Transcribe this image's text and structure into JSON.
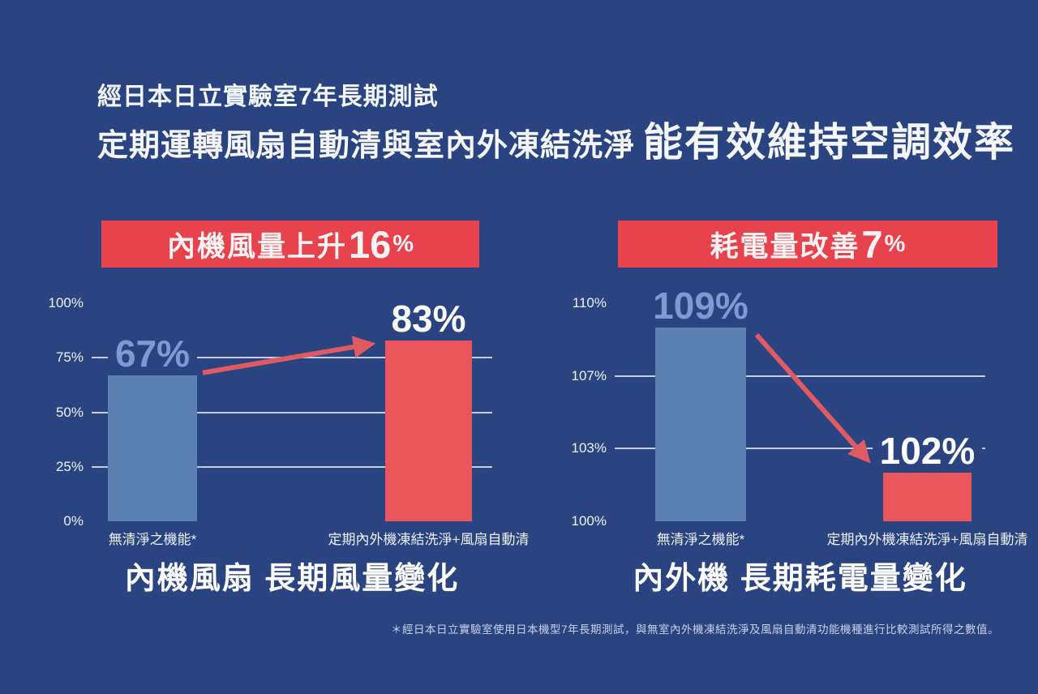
{
  "colors": {
    "background": "#2a4481",
    "banner_red": "#e8424d",
    "bar_blue": "#5d80b2",
    "bar_red": "#ea565b",
    "arrow_red": "#e05a62",
    "value_label_blue": "#7e9bd1",
    "gridline": "#ebf0fa"
  },
  "header": {
    "line1": "經日本日立實驗室7年長期測試",
    "line2_regular": "定期運轉風扇自動清與室內外凍結洗淨",
    "line2_emphasis": "能有效維持空調效率"
  },
  "footnote": "＊經日本日立實驗室使用日本機型7年長期測試，與無室內外機凍結洗淨及風扇自動清功能機種進行比較測試所得之數值。",
  "chart_data": [
    {
      "type": "bar",
      "title": "內機風量上升16%",
      "banner": {
        "text": "內機風量上升",
        "number": "16",
        "unit": "%"
      },
      "categories": [
        "無清淨之機能*",
        "定期內外機凍結洗淨+風扇自動清"
      ],
      "values": [
        67,
        83
      ],
      "value_labels": [
        "67%",
        "83%"
      ],
      "value_label_colors": [
        "#7e9bd1",
        "#ffffff"
      ],
      "bar_colors": [
        "#5d80b2",
        "#ea565b"
      ],
      "yticks": [
        0,
        25,
        50,
        75,
        100
      ],
      "ytick_labels": [
        "0%",
        "25%",
        "50%",
        "75%",
        "100%"
      ],
      "grid_ticks": [
        25,
        50,
        75
      ],
      "ylim": [
        0,
        100
      ],
      "grid": true,
      "legend": "none",
      "trend": "up",
      "caption": "內機風扇 長期風量變化"
    },
    {
      "type": "bar",
      "title": "耗電量改善7%",
      "banner": {
        "text": "耗電量改善",
        "number": "7",
        "unit": "%"
      },
      "categories": [
        "無清淨之機能*",
        "定期內外機凍結洗淨+風扇自動清"
      ],
      "values": [
        109,
        102
      ],
      "value_labels": [
        "109%",
        "102%"
      ],
      "value_label_colors": [
        "#7e9bd1",
        "#ffffff"
      ],
      "bar_colors": [
        "#5d80b2",
        "#ea565b"
      ],
      "yticks": [
        100,
        103,
        107,
        110
      ],
      "ytick_labels": [
        "100%",
        "103%",
        "107%",
        "110%"
      ],
      "grid_ticks": [
        103,
        107
      ],
      "ylim": [
        100,
        110
      ],
      "grid": true,
      "legend": "none",
      "trend": "down",
      "caption": "內外機 長期耗電量變化"
    }
  ]
}
